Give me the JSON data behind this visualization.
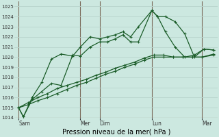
{
  "title": "",
  "xlabel": "Pression niveau de la mer( hPa )",
  "background_color": "#cce8e0",
  "grid_color": "#b8d4cc",
  "line_color": "#1a5c28",
  "vline_color": "#7a6a5a",
  "ylim": [
    1014,
    1025.5
  ],
  "yticks": [
    1014,
    1015,
    1016,
    1017,
    1018,
    1019,
    1020,
    1021,
    1022,
    1023,
    1024,
    1025
  ],
  "day_labels": [
    "Sam",
    "Mer",
    "Dim",
    "Lun",
    "Mar"
  ],
  "day_positions": [
    0.0,
    3.2,
    4.2,
    6.9,
    9.5
  ],
  "xlim": [
    -0.2,
    10.3
  ],
  "series1": {
    "x": [
      0.0,
      0.25,
      0.7,
      1.2,
      1.7,
      2.2,
      2.8,
      3.2,
      3.7,
      4.2,
      4.6,
      5.0,
      5.4,
      5.8,
      6.2,
      6.9,
      7.2,
      7.6,
      8.1,
      8.6,
      9.1,
      9.6,
      10.1
    ],
    "y": [
      1015.0,
      1014.1,
      1015.8,
      1016.6,
      1017.4,
      1017.2,
      1020.2,
      1020.1,
      1021.0,
      1021.5,
      1021.5,
      1021.8,
      1022.2,
      1021.5,
      1021.5,
      1024.6,
      1024.0,
      1024.0,
      1023.5,
      1022.3,
      1020.0,
      1020.8,
      1020.7
    ]
  },
  "series2": {
    "x": [
      0.0,
      0.25,
      0.7,
      1.2,
      1.7,
      2.2,
      2.8,
      3.2,
      3.7,
      4.2,
      4.6,
      5.0,
      5.4,
      5.8,
      6.2,
      6.9,
      7.2,
      7.6,
      8.1,
      8.6,
      9.1,
      9.6,
      10.1
    ],
    "y": [
      1015.0,
      1014.1,
      1016.0,
      1017.5,
      1019.8,
      1020.3,
      1020.1,
      1021.0,
      1022.0,
      1021.8,
      1022.0,
      1022.2,
      1022.5,
      1022.0,
      1023.0,
      1024.6,
      1024.0,
      1022.5,
      1021.0,
      1020.0,
      1020.2,
      1020.8,
      1020.7
    ]
  },
  "series3": {
    "x": [
      0.0,
      0.5,
      1.0,
      1.5,
      2.0,
      2.5,
      3.0,
      3.5,
      4.0,
      4.5,
      5.0,
      5.5,
      6.0,
      6.5,
      7.0,
      7.5,
      8.0,
      8.5,
      9.0,
      9.5,
      10.1
    ],
    "y": [
      1015.0,
      1015.3,
      1015.7,
      1016.0,
      1016.4,
      1016.8,
      1017.2,
      1017.5,
      1017.9,
      1018.3,
      1018.6,
      1019.0,
      1019.3,
      1019.7,
      1020.0,
      1020.0,
      1020.0,
      1020.0,
      1020.0,
      1020.0,
      1020.3
    ]
  },
  "series4": {
    "x": [
      0.0,
      0.5,
      1.0,
      1.5,
      2.0,
      2.5,
      3.0,
      3.5,
      4.0,
      4.5,
      5.0,
      5.5,
      6.0,
      6.5,
      7.0,
      7.5,
      8.0,
      8.5,
      9.0,
      9.5,
      10.1
    ],
    "y": [
      1015.0,
      1015.5,
      1016.0,
      1016.4,
      1016.9,
      1017.2,
      1017.5,
      1017.8,
      1018.2,
      1018.5,
      1018.9,
      1019.2,
      1019.5,
      1019.9,
      1020.2,
      1020.2,
      1020.0,
      1020.0,
      1020.0,
      1020.0,
      1020.2
    ]
  }
}
